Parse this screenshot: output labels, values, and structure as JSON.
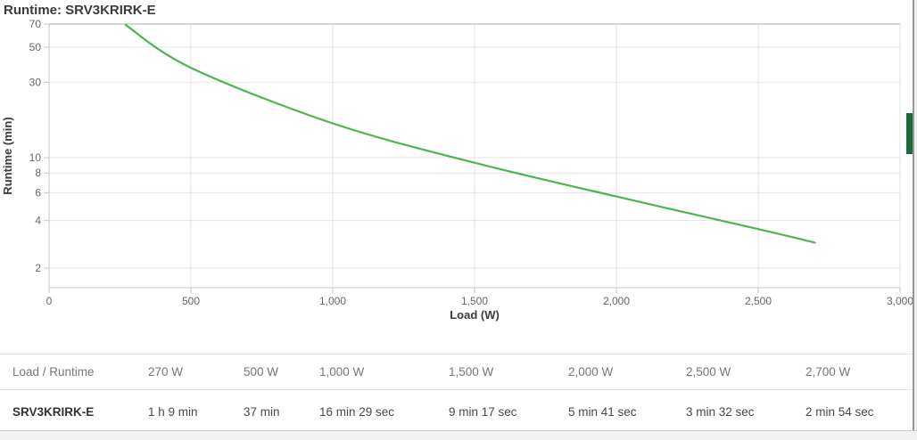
{
  "title": "Runtime: SRV3KRIRK-E",
  "chart_data": {
    "type": "line",
    "title": "Runtime: SRV3KRIRK-E",
    "xlabel": "Load (W)",
    "ylabel": "Runtime (min)",
    "x_scale": "linear",
    "y_scale": "log",
    "xlim": [
      0,
      3000
    ],
    "ylim": [
      1.5,
      70
    ],
    "grid": true,
    "legend": false,
    "x_ticks": [
      0,
      500,
      1000,
      1500,
      2000,
      2500,
      3000
    ],
    "x_tick_labels": [
      "0",
      "500",
      "1,000",
      "1,500",
      "2,000",
      "2,500",
      "3,000"
    ],
    "y_ticks": [
      2,
      4,
      6,
      8,
      10,
      30,
      50,
      70
    ],
    "y_tick_labels": [
      "2",
      "4",
      "6",
      "8",
      "10",
      "30",
      "50",
      "70"
    ],
    "series": [
      {
        "name": "SRV3KRIRK-E",
        "color": "#4bb64e",
        "points": [
          {
            "load_w": 270,
            "runtime_min": 69.0,
            "runtime_label": "1 h 9 min"
          },
          {
            "load_w": 500,
            "runtime_min": 37.0,
            "runtime_label": "37 min"
          },
          {
            "load_w": 1000,
            "runtime_min": 16.483,
            "runtime_label": "16 min 29 sec"
          },
          {
            "load_w": 1500,
            "runtime_min": 9.283,
            "runtime_label": "9 min 17 sec"
          },
          {
            "load_w": 2000,
            "runtime_min": 5.683,
            "runtime_label": "5 min 41 sec"
          },
          {
            "load_w": 2500,
            "runtime_min": 3.533,
            "runtime_label": "3 min 32 sec"
          },
          {
            "load_w": 2700,
            "runtime_min": 2.9,
            "runtime_label": "2 min 54 sec"
          }
        ]
      }
    ]
  },
  "table": {
    "headers": [
      "Load / Runtime",
      "270 W",
      "500 W",
      "1,000 W",
      "1,500 W",
      "2,000 W",
      "2,500 W",
      "2,700 W"
    ],
    "rows": [
      {
        "label": "SRV3KRIRK-E",
        "values": [
          "1 h 9 min",
          "37 min",
          "16 min 29 sec",
          "9 min 17 sec",
          "5 min 41 sec",
          "3 min 32 sec",
          "2 min 54 sec"
        ]
      }
    ]
  },
  "colors": {
    "curve": "#4bb64e",
    "grid_line": "#e2e2e2",
    "plot_top_line": "#a8a8a8",
    "axis_line": "#c6c6c6",
    "feedback_tab": "#1a6b36"
  }
}
